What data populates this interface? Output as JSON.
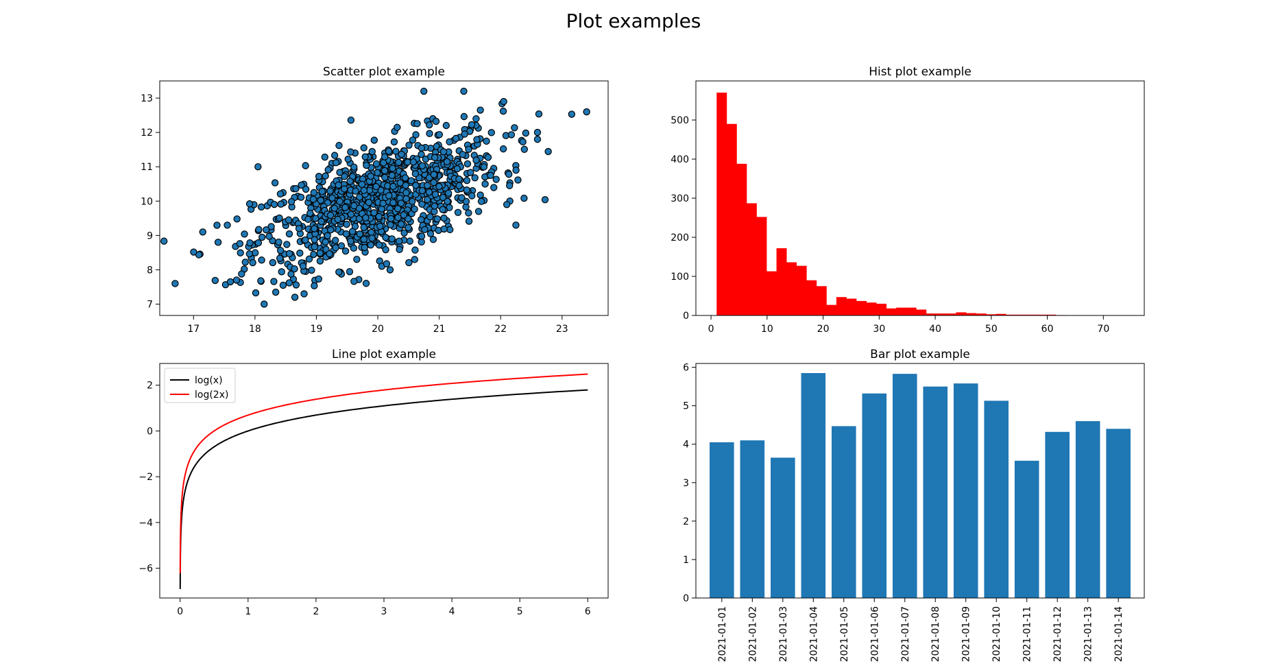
{
  "suptitle": "Plot examples",
  "chart_data": [
    {
      "type": "scatter",
      "title": "Scatter plot example",
      "xlabel": "",
      "ylabel": "",
      "xlim": [
        16.45,
        23.75
      ],
      "ylim": [
        6.67,
        13.5
      ],
      "xticks": [
        17,
        18,
        19,
        20,
        21,
        22,
        23
      ],
      "yticks": [
        7,
        8,
        9,
        10,
        11,
        12,
        13
      ],
      "marker_color": "#1f77b4",
      "marker_edge": "#000000",
      "points_sample_n": 1000,
      "distribution": {
        "x_mean": 20.0,
        "x_std": 1.0,
        "y_mean": 10.0,
        "y_std": 1.0,
        "correlation": 0.6
      },
      "notable_points": [
        {
          "x": 16.7,
          "y": 7.6
        },
        {
          "x": 18.15,
          "y": 7.0
        },
        {
          "x": 18.05,
          "y": 11.0
        },
        {
          "x": 20.75,
          "y": 13.2
        },
        {
          "x": 21.4,
          "y": 13.2
        },
        {
          "x": 23.4,
          "y": 12.6
        },
        {
          "x": 22.6,
          "y": 12.0
        },
        {
          "x": 22.6,
          "y": 11.8
        },
        {
          "x": 22.05,
          "y": 12.9
        },
        {
          "x": 17.4,
          "y": 8.8
        },
        {
          "x": 17.55,
          "y": 9.3
        },
        {
          "x": 17.6,
          "y": 7.65
        },
        {
          "x": 17.7,
          "y": 7.7
        },
        {
          "x": 18.8,
          "y": 7.3
        },
        {
          "x": 18.65,
          "y": 7.2
        },
        {
          "x": 20.2,
          "y": 8.0
        },
        {
          "x": 20.6,
          "y": 8.3
        },
        {
          "x": 22.15,
          "y": 10.0
        },
        {
          "x": 22.1,
          "y": 9.9
        },
        {
          "x": 22.25,
          "y": 10.9
        }
      ]
    },
    {
      "type": "bar",
      "subtype": "histogram",
      "title": "Hist plot example",
      "xlabel": "",
      "ylabel": "",
      "xlim": [
        -2.7,
        77.3
      ],
      "ylim": [
        0,
        600
      ],
      "xticks": [
        0,
        10,
        20,
        30,
        40,
        50,
        60,
        70
      ],
      "yticks": [
        0,
        100,
        200,
        300,
        400,
        500
      ],
      "bar_color": "#ff0000",
      "bin_start": 1.0,
      "bin_width": 1.78,
      "values": [
        570,
        490,
        388,
        287,
        252,
        113,
        172,
        136,
        127,
        90,
        75,
        27,
        47,
        43,
        37,
        33,
        30,
        18,
        20,
        20,
        15,
        5,
        5,
        5,
        8,
        6,
        5,
        3,
        4,
        2,
        2,
        2,
        2,
        2,
        1,
        0,
        0,
        0,
        0,
        0,
        0
      ]
    },
    {
      "type": "line",
      "title": "Line plot example",
      "xlabel": "",
      "ylabel": "",
      "xlim": [
        -0.3,
        6.3
      ],
      "ylim": [
        -7.3,
        2.95
      ],
      "xticks": [
        0,
        1,
        2,
        3,
        4,
        5,
        6
      ],
      "yticks": [
        -6,
        -4,
        -2,
        0,
        2
      ],
      "legend_position": "upper-left",
      "x_range": [
        0.001,
        6
      ],
      "series": [
        {
          "name": "log(x)",
          "color": "#000000",
          "function": "log",
          "multiplier": 1
        },
        {
          "name": "log(2x)",
          "color": "#ff0000",
          "function": "log",
          "multiplier": 2
        }
      ]
    },
    {
      "type": "bar",
      "title": "Bar plot example",
      "xlabel": "",
      "ylabel": "",
      "ylim": [
        0,
        6.1
      ],
      "yticks": [
        0,
        1,
        2,
        3,
        4,
        5,
        6
      ],
      "bar_color": "#1f77b4",
      "categories": [
        "2021-01-01",
        "2021-01-02",
        "2021-01-03",
        "2021-01-04",
        "2021-01-05",
        "2021-01-06",
        "2021-01-07",
        "2021-01-08",
        "2021-01-09",
        "2021-01-10",
        "2021-01-11",
        "2021-01-12",
        "2021-01-13",
        "2021-01-14"
      ],
      "values": [
        4.05,
        4.1,
        3.65,
        5.85,
        4.47,
        5.32,
        5.83,
        5.5,
        5.58,
        5.13,
        3.57,
        4.32,
        4.6,
        4.4
      ]
    }
  ]
}
